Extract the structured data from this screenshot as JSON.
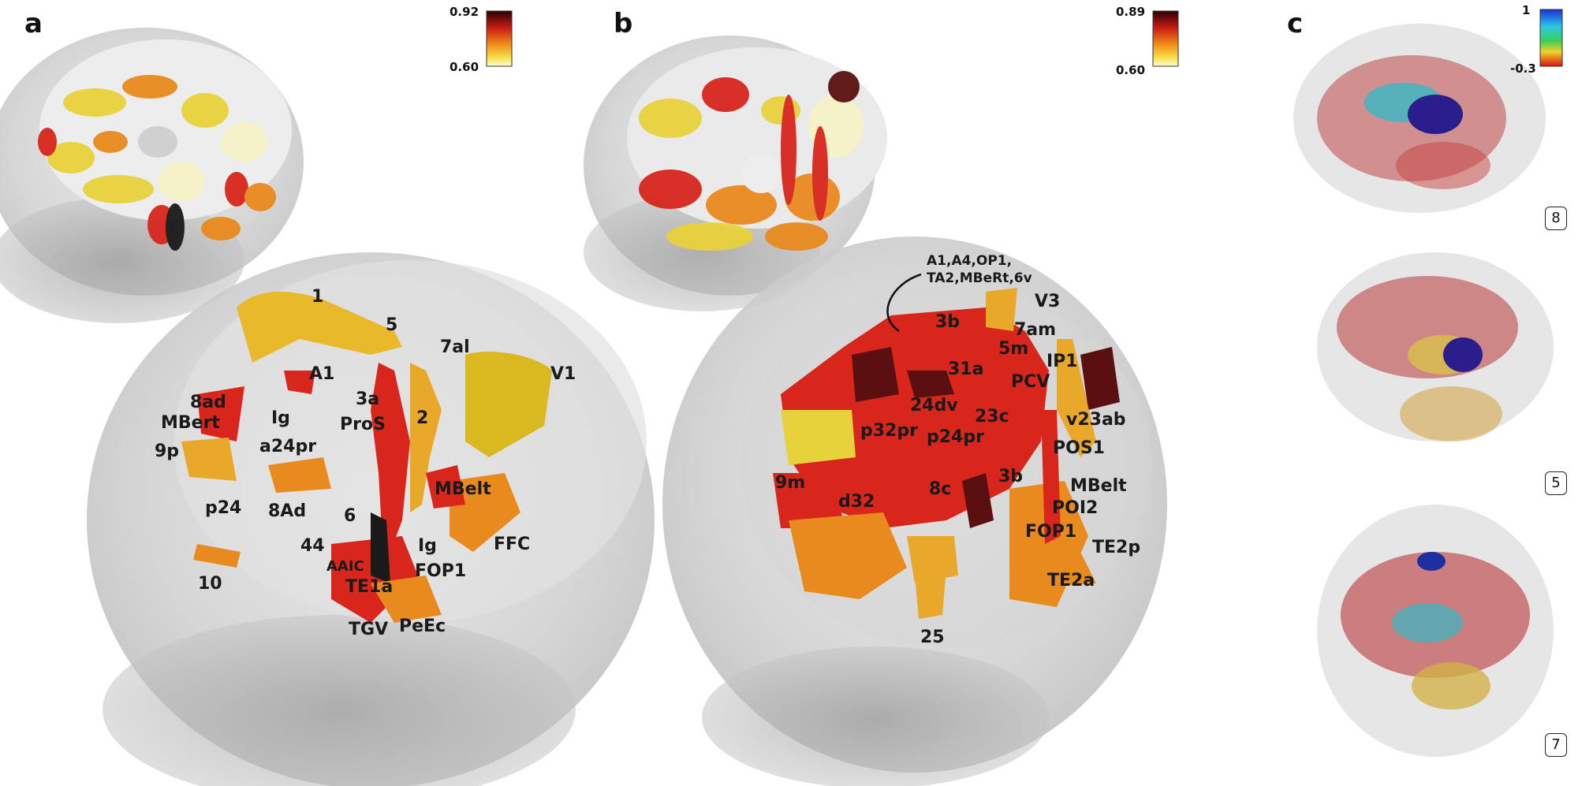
{
  "panels": {
    "a": {
      "letter": "a",
      "colorbar": {
        "max": "0.92",
        "min": "0.60"
      },
      "labels": {
        "l1": "1",
        "l5": "5",
        "l7al": "7al",
        "lV1": "V1",
        "lA1": "A1",
        "l3a": "3a",
        "l8ad": "8ad",
        "lMBert": "MBert",
        "lIg1": "Ig",
        "lProS": "ProS",
        "l2": "2",
        "l9p": "9p",
        "la24pr": "a24pr",
        "lp24": "p24",
        "l8Ad": "8Ad",
        "lMBelt": "MBelt",
        "l6": "6",
        "l44": "44",
        "lAAIC": "AAIC",
        "lIg2": "Ig",
        "lFFC": "FFC",
        "lFOP1": "FOP1",
        "lTE1a": "TE1a",
        "l10": "10",
        "lTGV": "TGV",
        "lPeEc": "PeEc"
      }
    },
    "b": {
      "letter": "b",
      "colorbar": {
        "max": "0.89",
        "min": "0.60"
      },
      "cluster_line1": "A1,A4,OP1,",
      "cluster_line2": "TA2,MBeRt,6v",
      "labels": {
        "lV3": "V3",
        "l3b1": "3b",
        "l7am": "7am",
        "l5m": "5m",
        "lIP1": "IP1",
        "l31a": "31a",
        "lPCV": "PCV",
        "l24dv": "24dv",
        "l23c": "23c",
        "lv23ab": "v23ab",
        "lp32pr": "p32pr",
        "lp24pr": "p24pr",
        "lPOS1": "POS1",
        "l3b2": "3b",
        "l9m": "9m",
        "l8c": "8c",
        "lMBelt": "MBelt",
        "ld32": "d32",
        "lPOI2": "POI2",
        "lFOP1": "FOP1",
        "lTE2p": "TE2p",
        "lTE2a": "TE2a",
        "l25": "25"
      }
    },
    "c": {
      "letter": "c",
      "colorbar": {
        "max": "1",
        "min": "-0.3"
      },
      "badges": {
        "top": "8",
        "middle": "5",
        "bottom": "7"
      }
    }
  },
  "colors": {
    "heat_dark": "#3a0a0a",
    "heat_red": "#d8261c",
    "heat_orange": "#e98a1e",
    "heat_yellow": "#e8d23c",
    "pale": "#f6f3c8",
    "gray_head": "#b4b4b4"
  }
}
